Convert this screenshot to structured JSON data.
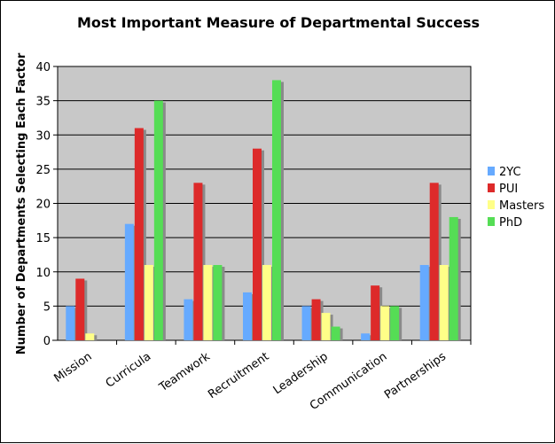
{
  "chart_data": {
    "type": "bar",
    "title": "Most Important Measure of Departmental Success",
    "ylabel": "Number of Departments Selecting Each Factor",
    "xlabel": "",
    "ylim": [
      0,
      40
    ],
    "yticks": [
      0,
      5,
      10,
      15,
      20,
      25,
      30,
      35,
      40
    ],
    "grid": true,
    "legend_position": "right",
    "categories": [
      "Mission",
      "Curricula",
      "Teamwork",
      "Recruitment",
      "Leadership",
      "Communication",
      "Partnerships"
    ],
    "series": [
      {
        "name": "2YC",
        "color": "#66aaff",
        "values": [
          5,
          17,
          6,
          7,
          5,
          1,
          11
        ]
      },
      {
        "name": "PUI",
        "color": "#dd2a2a",
        "values": [
          9,
          31,
          23,
          28,
          6,
          8,
          23
        ]
      },
      {
        "name": "Masters",
        "color": "#ffff88",
        "values": [
          1,
          11,
          11,
          11,
          4,
          5,
          11
        ]
      },
      {
        "name": "PhD",
        "color": "#55dd55",
        "values": [
          0,
          35,
          11,
          38,
          2,
          5,
          18
        ]
      }
    ],
    "plot_background": "#c8c8c8",
    "shadow_color": "#8a8a8a"
  }
}
